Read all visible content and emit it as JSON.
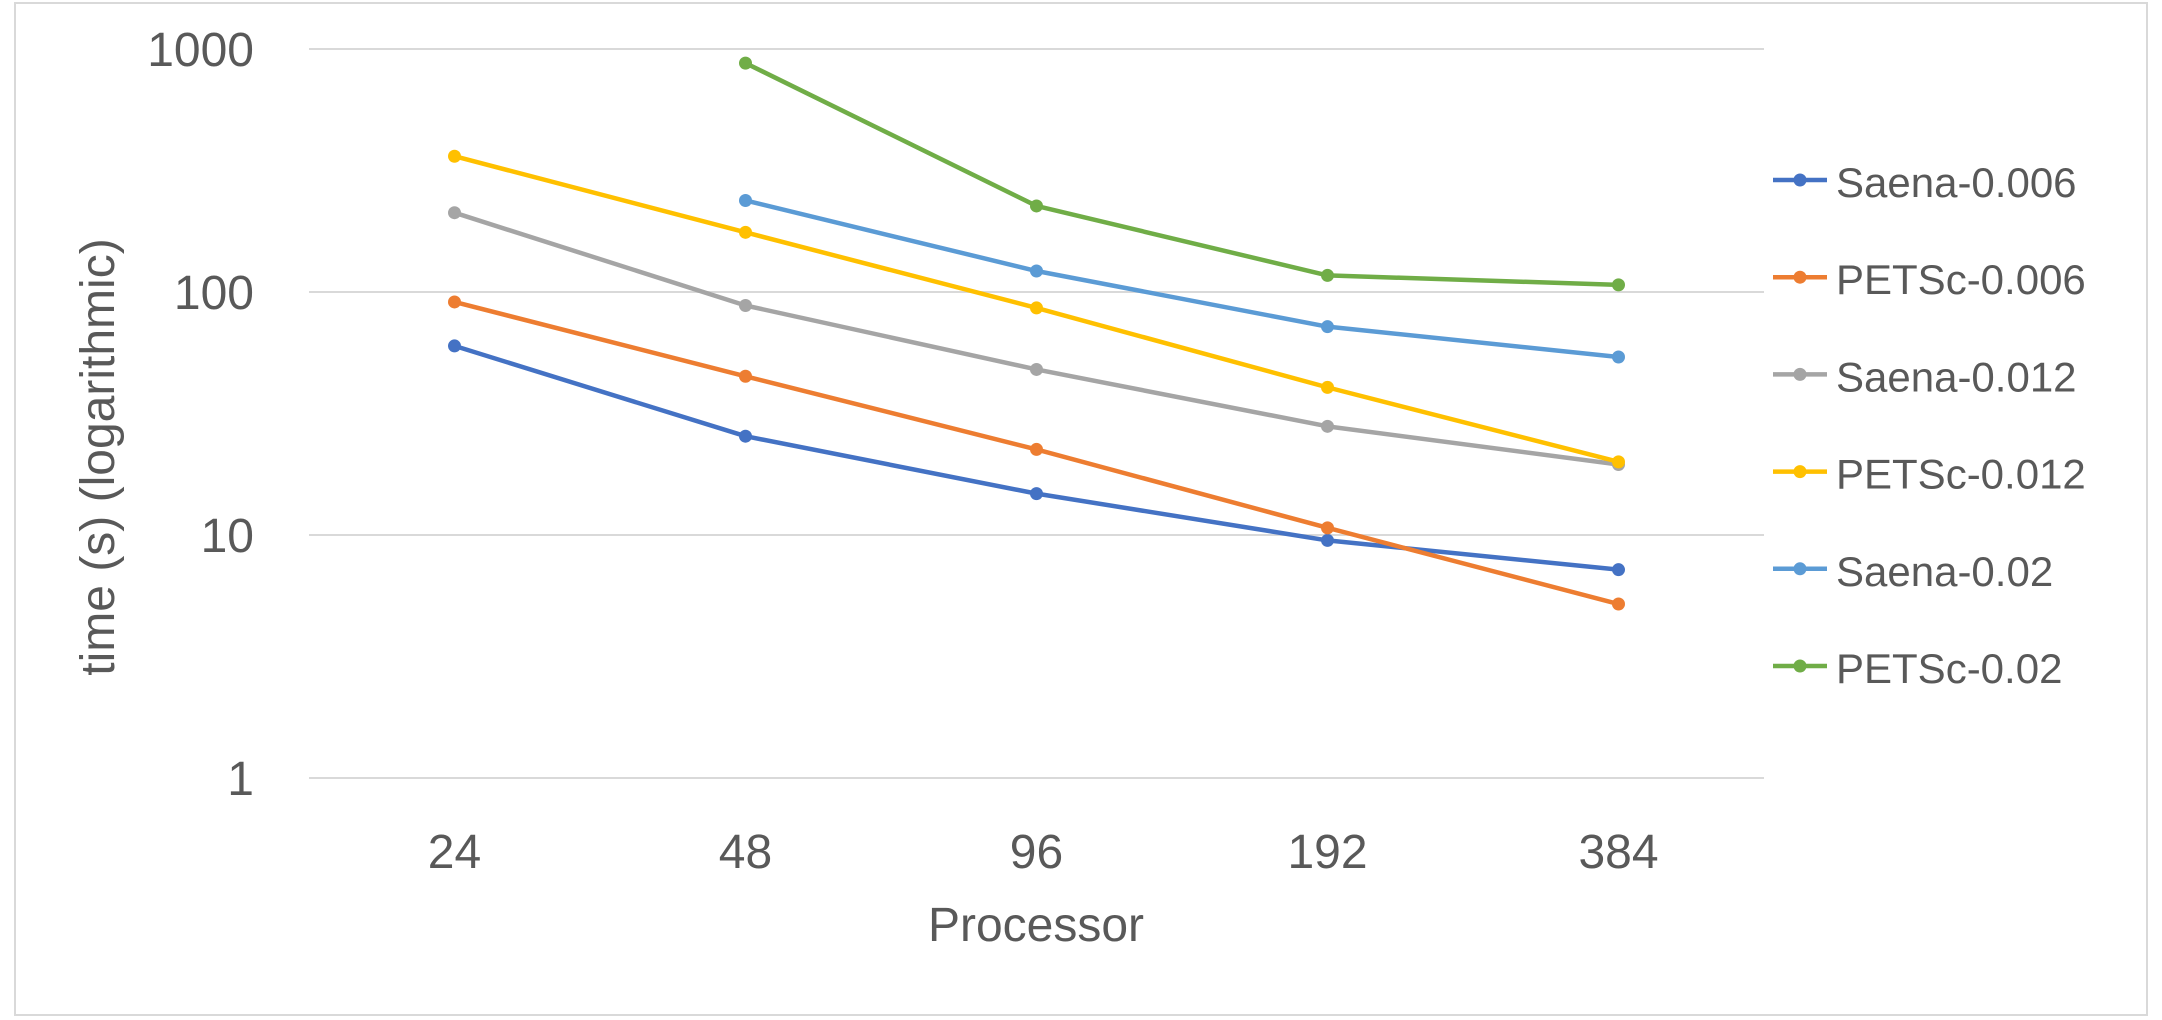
{
  "chart_data": {
    "type": "line",
    "title": "",
    "xlabel": "Processor",
    "ylabel": "time (s) (logarithmic)",
    "y_scale": "log",
    "ylim": [
      1,
      1000
    ],
    "y_ticks": [
      "1",
      "10",
      "100",
      "1000"
    ],
    "categories": [
      "24",
      "48",
      "96",
      "192",
      "384"
    ],
    "grid": "horizontal",
    "legend_position": "right",
    "series": [
      {
        "name": "Saena-0.006",
        "color": "#4472C4",
        "values": [
          60,
          25.5,
          14.8,
          9.5,
          7.2
        ]
      },
      {
        "name": "PETSc-0.006",
        "color": "#ED7D31",
        "values": [
          91,
          45,
          22.5,
          10.7,
          5.2
        ]
      },
      {
        "name": "Saena-0.012",
        "color": "#A5A5A5",
        "values": [
          212,
          88,
          48,
          28,
          19.5
        ]
      },
      {
        "name": "PETSc-0.012",
        "color": "#FFC000",
        "values": [
          362,
          176,
          86,
          40.5,
          20
        ]
      },
      {
        "name": "Saena-0.02",
        "color": "#5B9BD5",
        "values": [
          null,
          238,
          122,
          72,
          54
        ]
      },
      {
        "name": "PETSc-0.02",
        "color": "#70AD47",
        "values": [
          null,
          875,
          226,
          117,
          107
        ]
      }
    ]
  }
}
